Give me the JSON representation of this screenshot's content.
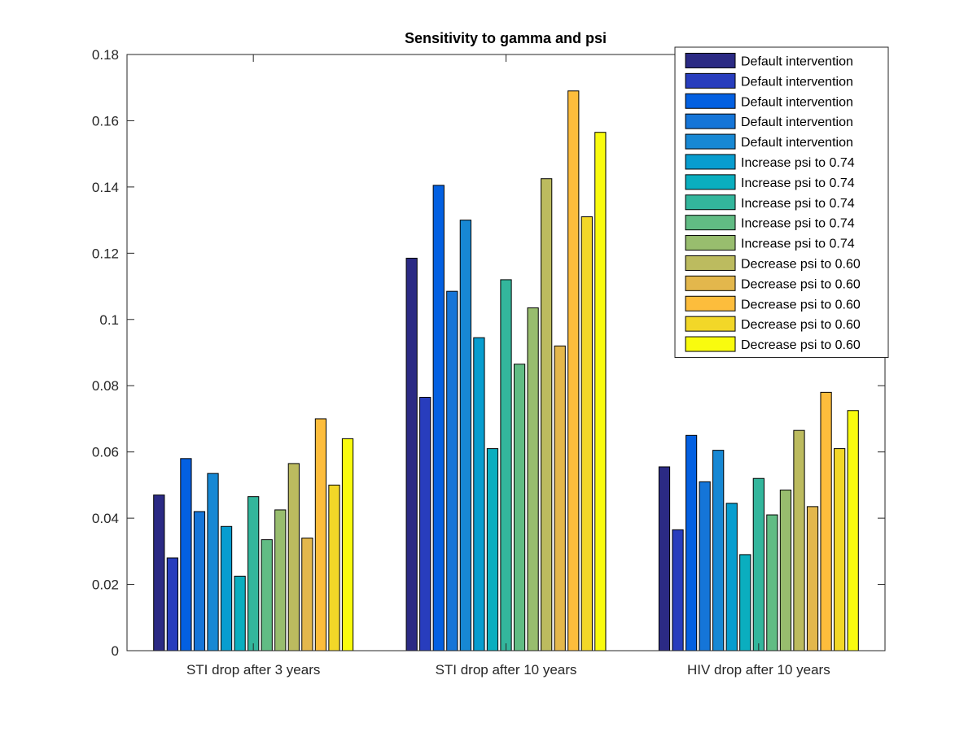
{
  "chart_data": {
    "type": "bar",
    "title": "Sensitivity to gamma and psi",
    "xlabel": "",
    "ylabel": "",
    "categories": [
      "STI drop after 3 years",
      "STI drop after 10 years",
      "HIV drop after 10 years"
    ],
    "ylim": [
      0,
      0.18
    ],
    "yticks": [
      "0",
      "0.02",
      "0.04",
      "0.06",
      "0.08",
      "0.1",
      "0.12",
      "0.14",
      "0.16",
      "0.18"
    ],
    "grid": false,
    "legend_position": "top-right",
    "series": [
      {
        "name": "Default intervention",
        "color": "#2b2a84",
        "values": [
          0.047,
          0.1185,
          0.0555
        ]
      },
      {
        "name": "Default intervention",
        "color": "#283dbd",
        "values": [
          0.028,
          0.0765,
          0.0365
        ]
      },
      {
        "name": "Default intervention",
        "color": "#0360e1",
        "values": [
          0.058,
          0.1405,
          0.065
        ]
      },
      {
        "name": "Default intervention",
        "color": "#1575d8",
        "values": [
          0.042,
          0.1085,
          0.051
        ]
      },
      {
        "name": "Default intervention",
        "color": "#1788d4",
        "values": [
          0.0535,
          0.13,
          0.0605
        ]
      },
      {
        "name": "Increase psi to 0.74",
        "color": "#079dcf",
        "values": [
          0.0375,
          0.0945,
          0.0445
        ]
      },
      {
        "name": "Increase psi to 0.74",
        "color": "#0aaebf",
        "values": [
          0.0225,
          0.061,
          0.029
        ]
      },
      {
        "name": "Increase psi to 0.74",
        "color": "#33b69c",
        "values": [
          0.0465,
          0.112,
          0.052
        ]
      },
      {
        "name": "Increase psi to 0.74",
        "color": "#61bc84",
        "values": [
          0.0335,
          0.0865,
          0.041
        ]
      },
      {
        "name": "Increase psi to 0.74",
        "color": "#98bd6e",
        "values": [
          0.0425,
          0.1035,
          0.0485
        ]
      },
      {
        "name": "Decrease psi to 0.60",
        "color": "#bcbb5f",
        "values": [
          0.0565,
          0.1425,
          0.0665
        ]
      },
      {
        "name": "Decrease psi to 0.60",
        "color": "#e3b74c",
        "values": [
          0.034,
          0.092,
          0.0435
        ]
      },
      {
        "name": "Decrease psi to 0.60",
        "color": "#fdbd3c",
        "values": [
          0.07,
          0.169,
          0.078
        ]
      },
      {
        "name": "Decrease psi to 0.60",
        "color": "#f2d728",
        "values": [
          0.05,
          0.131,
          0.061
        ]
      },
      {
        "name": "Decrease psi to 0.60",
        "color": "#f9fb0e",
        "values": [
          0.064,
          0.1565,
          0.0725
        ]
      }
    ]
  }
}
